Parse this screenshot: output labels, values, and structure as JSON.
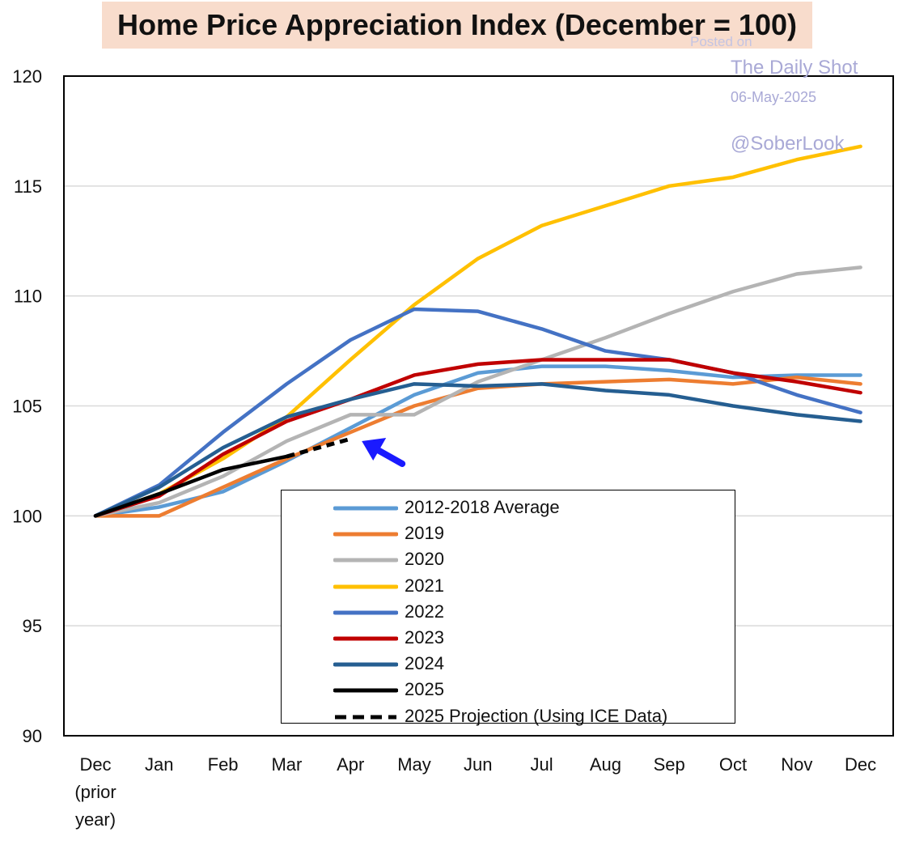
{
  "title": "Home Price Appreciation Index (December = 100)",
  "watermark": {
    "posted": "Posted on",
    "name": "The Daily Shot",
    "date": "06-May-2025",
    "handle": "@SoberLook"
  },
  "chart_data": {
    "type": "line",
    "title": "Home Price Appreciation Index (December = 100)",
    "categories": [
      "Dec\n(prior\nyear)",
      "Jan",
      "Feb",
      "Mar",
      "Apr",
      "May",
      "Jun",
      "Jul",
      "Aug",
      "Sep",
      "Oct",
      "Nov",
      "Dec"
    ],
    "ylim": [
      90,
      120
    ],
    "yticks": [
      90,
      95,
      100,
      105,
      110,
      115,
      120
    ],
    "grid": "horizontal",
    "legend_position": "bottom-center inside plot",
    "series": [
      {
        "name": "2012-2018 Average",
        "color": "#5b9bd5",
        "style": "solid",
        "values": [
          100,
          100.4,
          101.1,
          102.5,
          104.0,
          105.5,
          106.5,
          106.8,
          106.8,
          106.6,
          106.3,
          106.4,
          106.4
        ]
      },
      {
        "name": "2019",
        "color": "#ed7d31",
        "style": "solid",
        "values": [
          100,
          100.0,
          101.3,
          102.6,
          103.8,
          105.0,
          105.8,
          106.0,
          106.1,
          106.2,
          106.0,
          106.3,
          106.0
        ]
      },
      {
        "name": "2020",
        "color": "#b4b4b4",
        "style": "solid",
        "values": [
          100,
          100.6,
          101.8,
          103.4,
          104.6,
          104.6,
          106.1,
          107.1,
          108.1,
          109.2,
          110.2,
          111.0,
          111.3
        ]
      },
      {
        "name": "2021",
        "color": "#ffc000",
        "style": "solid",
        "values": [
          100,
          101.0,
          102.6,
          104.5,
          107.1,
          109.6,
          111.7,
          113.2,
          114.1,
          115.0,
          115.4,
          116.2,
          116.8
        ]
      },
      {
        "name": "2022",
        "color": "#4472c4",
        "style": "solid",
        "values": [
          100,
          101.4,
          103.8,
          106.0,
          108.0,
          109.4,
          109.3,
          108.5,
          107.5,
          107.1,
          106.5,
          105.5,
          104.7
        ]
      },
      {
        "name": "2023",
        "color": "#c00000",
        "style": "solid",
        "values": [
          100,
          100.9,
          102.8,
          104.3,
          105.3,
          106.4,
          106.9,
          107.1,
          107.1,
          107.1,
          106.5,
          106.1,
          105.6
        ]
      },
      {
        "name": "2024",
        "color": "#255e91",
        "style": "solid",
        "values": [
          100,
          101.3,
          103.1,
          104.5,
          105.3,
          106.0,
          105.9,
          106.0,
          105.7,
          105.5,
          105.0,
          104.6,
          104.3
        ]
      },
      {
        "name": "2025",
        "color": "#000000",
        "style": "solid",
        "values": [
          100,
          101.0,
          102.1,
          102.7,
          null,
          null,
          null,
          null,
          null,
          null,
          null,
          null,
          null
        ]
      },
      {
        "name": "2025 Projection (Using ICE Data)",
        "color": "#000000",
        "style": "dashed",
        "values": [
          null,
          null,
          null,
          102.7,
          103.5,
          null,
          null,
          null,
          null,
          null,
          null,
          null,
          null
        ]
      }
    ],
    "annotations": [
      {
        "type": "arrow",
        "color": "#1a1aff",
        "points_to": {
          "x": "Apr",
          "y": 103.4
        }
      }
    ]
  }
}
